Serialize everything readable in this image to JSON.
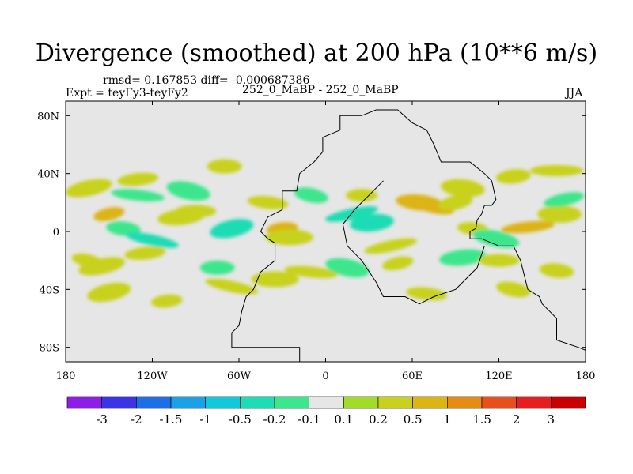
{
  "chart_data": {
    "type": "heatmap",
    "title": "Divergence (smoothed) at 200 hPa (10**6 m/s)",
    "stats": "rmsd= 0.167853 diff= -0.000687386",
    "left_label": "Expt = teyFy3-teyFy2",
    "center_label": "252_0_MaBP - 252_0_MaBP",
    "right_label": "JJA",
    "x_ticks": [
      {
        "label": "180",
        "lon": -180
      },
      {
        "label": "120W",
        "lon": -120
      },
      {
        "label": "60W",
        "lon": -60
      },
      {
        "label": "0",
        "lon": 0
      },
      {
        "label": "60E",
        "lon": 60
      },
      {
        "label": "120E",
        "lon": 120
      },
      {
        "label": "180",
        "lon": 180
      }
    ],
    "y_ticks": [
      {
        "label": "80N",
        "lat": 80
      },
      {
        "label": "40N",
        "lat": 40
      },
      {
        "label": "0",
        "lat": 0
      },
      {
        "label": "40S",
        "lat": -40
      },
      {
        "label": "80S",
        "lat": -80
      }
    ],
    "xlim": [
      -180,
      180
    ],
    "ylim": [
      -90,
      90
    ],
    "colorbar": {
      "levels": [
        "-3",
        "-2",
        "-1.5",
        "-1",
        "-0.5",
        "-0.2",
        "-0.1",
        "0.1",
        "0.2",
        "0.5",
        "1",
        "1.5",
        "2",
        "3"
      ],
      "colors": [
        "#8c1ee6",
        "#3c32e6",
        "#1e6ee6",
        "#1ea0e6",
        "#14c8dc",
        "#1edcb4",
        "#3ce68c",
        "#e6e6e6",
        "#a0dc28",
        "#c8d21e",
        "#dcb414",
        "#e68c14",
        "#e6501e",
        "#e61e1e",
        "#c80000"
      ]
    },
    "anomalies": [
      {
        "lon": -164,
        "lat": 30,
        "value": 0.2
      },
      {
        "lon": -130,
        "lat": 36,
        "value": 0.2
      },
      {
        "lon": -70,
        "lat": 45,
        "value": 0.2
      },
      {
        "lon": -130,
        "lat": 25,
        "value": -0.2
      },
      {
        "lon": -95,
        "lat": 28,
        "value": -0.2
      },
      {
        "lon": -150,
        "lat": 12,
        "value": 0.5
      },
      {
        "lon": -100,
        "lat": 10,
        "value": 0.2
      },
      {
        "lon": -90,
        "lat": 14,
        "value": 0.2
      },
      {
        "lon": -140,
        "lat": 2,
        "value": -0.2
      },
      {
        "lon": -120,
        "lat": -6,
        "value": -0.5
      },
      {
        "lon": -65,
        "lat": 2,
        "value": -0.5
      },
      {
        "lon": -30,
        "lat": 2,
        "value": 0.5
      },
      {
        "lon": -25,
        "lat": -4,
        "value": 0.2
      },
      {
        "lon": -40,
        "lat": 20,
        "value": 0.2
      },
      {
        "lon": -10,
        "lat": 25,
        "value": -0.2
      },
      {
        "lon": 18,
        "lat": 12,
        "value": -0.5
      },
      {
        "lon": 32,
        "lat": 6,
        "value": -0.5
      },
      {
        "lon": 25,
        "lat": 25,
        "value": 0.2
      },
      {
        "lon": 65,
        "lat": 20,
        "value": 0.5
      },
      {
        "lon": 75,
        "lat": 17,
        "value": 0.5
      },
      {
        "lon": 90,
        "lat": 20,
        "value": 0.2
      },
      {
        "lon": 140,
        "lat": 3,
        "value": 0.5
      },
      {
        "lon": 162,
        "lat": 12,
        "value": 0.2
      },
      {
        "lon": 102,
        "lat": 2,
        "value": 0.2
      },
      {
        "lon": 118,
        "lat": -5,
        "value": -0.2
      },
      {
        "lon": 165,
        "lat": 22,
        "value": -0.2
      },
      {
        "lon": 130,
        "lat": 38,
        "value": 0.2
      },
      {
        "lon": 160,
        "lat": 42,
        "value": 0.2
      },
      {
        "lon": 95,
        "lat": 30,
        "value": 0.2
      },
      {
        "lon": -165,
        "lat": -20,
        "value": 0.2
      },
      {
        "lon": -155,
        "lat": -24,
        "value": 0.2
      },
      {
        "lon": -125,
        "lat": -15,
        "value": 0.2
      },
      {
        "lon": -75,
        "lat": -25,
        "value": -0.2
      },
      {
        "lon": -10,
        "lat": -28,
        "value": 0.2
      },
      {
        "lon": 15,
        "lat": -25,
        "value": -0.2
      },
      {
        "lon": 50,
        "lat": -22,
        "value": 0.2
      },
      {
        "lon": 95,
        "lat": -18,
        "value": -0.2
      },
      {
        "lon": 120,
        "lat": -20,
        "value": 0.2
      },
      {
        "lon": 160,
        "lat": -27,
        "value": 0.2
      },
      {
        "lon": -65,
        "lat": -38,
        "value": 0.2
      },
      {
        "lon": -150,
        "lat": -42,
        "value": 0.2
      },
      {
        "lon": -110,
        "lat": -48,
        "value": 0.2
      },
      {
        "lon": -35,
        "lat": -33,
        "value": 0.2
      },
      {
        "lon": 70,
        "lat": -43,
        "value": 0.2
      },
      {
        "lon": 130,
        "lat": -40,
        "value": 0.2
      },
      {
        "lon": 45,
        "lat": -10,
        "value": 0.2
      }
    ],
    "outline_lonlat": [
      [
        -18,
        -90
      ],
      [
        -18,
        -80
      ],
      [
        -65,
        -80
      ],
      [
        -65,
        -70
      ],
      [
        -60,
        -65
      ],
      [
        -58,
        -55
      ],
      [
        -55,
        -45
      ],
      [
        -50,
        -40
      ],
      [
        -45,
        -28
      ],
      [
        -35,
        -20
      ],
      [
        -35,
        -8
      ],
      [
        -40,
        -5
      ],
      [
        -45,
        0
      ],
      [
        -40,
        10
      ],
      [
        -30,
        15
      ],
      [
        -30,
        28
      ],
      [
        -20,
        28
      ],
      [
        -18,
        40
      ],
      [
        -8,
        48
      ],
      [
        -2,
        55
      ],
      [
        -2,
        65
      ],
      [
        10,
        70
      ],
      [
        10,
        80
      ],
      [
        25,
        80
      ],
      [
        35,
        84
      ],
      [
        50,
        84
      ],
      [
        60,
        75
      ],
      [
        70,
        70
      ],
      [
        75,
        60
      ],
      [
        80,
        48
      ],
      [
        100,
        48
      ],
      [
        110,
        40
      ],
      [
        115,
        35
      ],
      [
        118,
        22
      ],
      [
        115,
        18
      ],
      [
        110,
        18
      ],
      [
        108,
        12
      ],
      [
        105,
        8
      ],
      [
        104,
        2
      ],
      [
        100,
        0
      ],
      [
        100,
        -5
      ],
      [
        108,
        -5
      ],
      [
        120,
        -10
      ],
      [
        130,
        -10
      ],
      [
        135,
        -20
      ],
      [
        140,
        -40
      ],
      [
        148,
        -45
      ],
      [
        150,
        -50
      ],
      [
        155,
        -55
      ],
      [
        160,
        -60
      ],
      [
        160,
        -75
      ],
      [
        175,
        -80
      ],
      [
        180,
        -82
      ]
    ],
    "outline2_lonlat": [
      [
        40,
        35
      ],
      [
        30,
        25
      ],
      [
        20,
        15
      ],
      [
        12,
        5
      ],
      [
        15,
        -10
      ],
      [
        25,
        -20
      ],
      [
        35,
        -35
      ],
      [
        40,
        -45
      ],
      [
        55,
        -45
      ],
      [
        65,
        -50
      ],
      [
        75,
        -45
      ],
      [
        90,
        -40
      ],
      [
        100,
        -30
      ],
      [
        105,
        -25
      ],
      [
        110,
        -10
      ]
    ]
  }
}
